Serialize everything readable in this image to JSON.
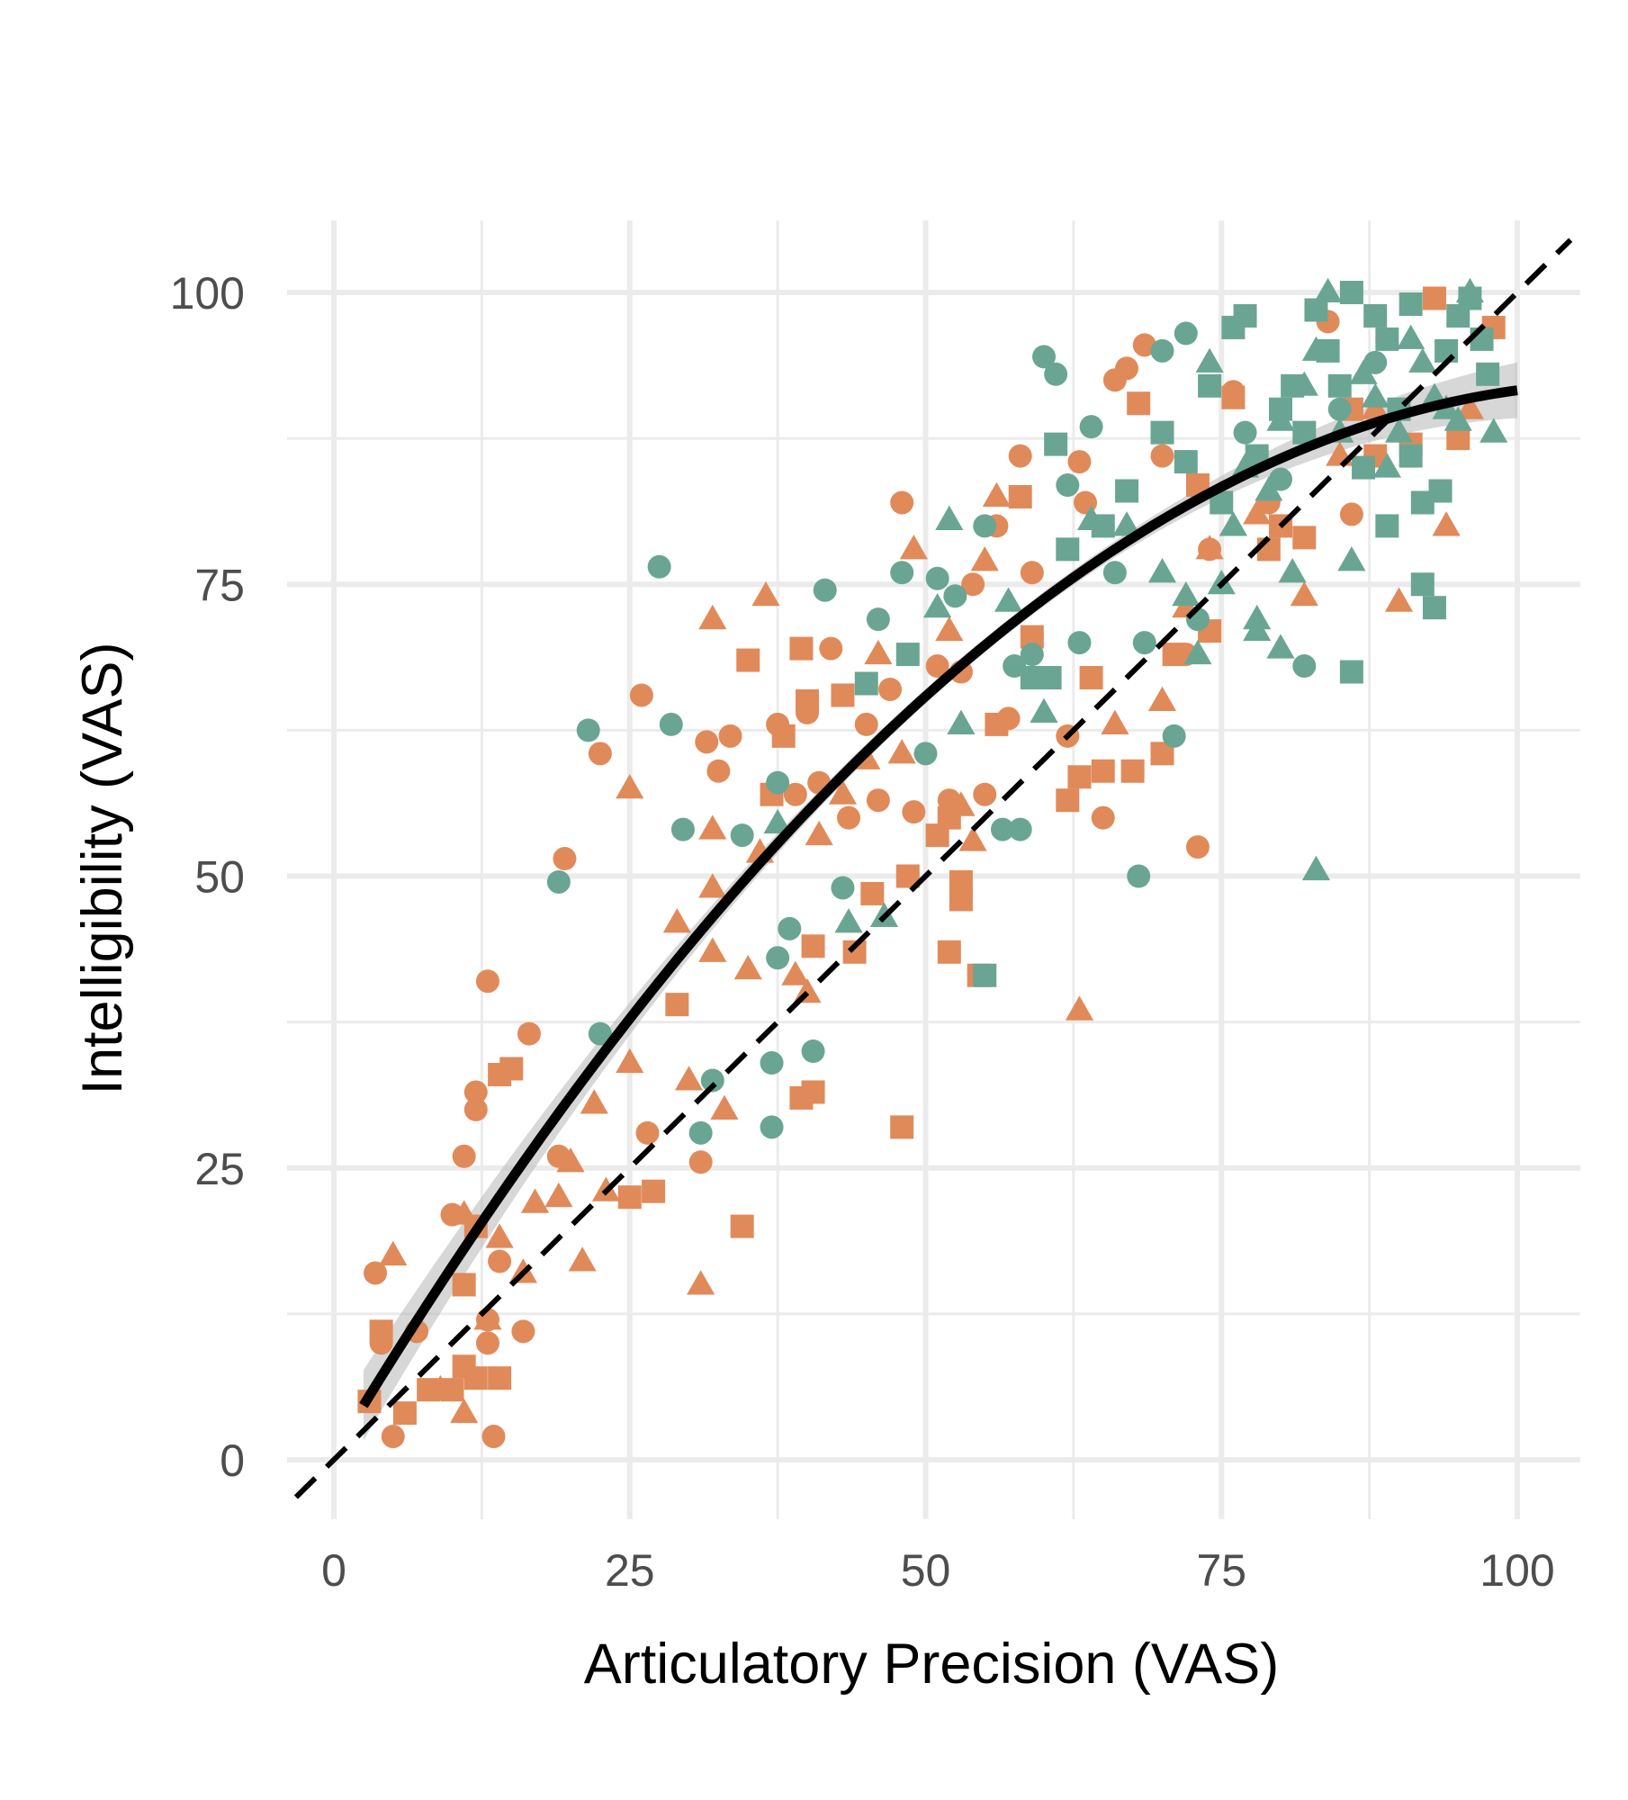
{
  "chart_data": {
    "type": "scatter",
    "title": "",
    "xlabel": "Articulatory Precision (VAS)",
    "ylabel": "Intelligibility (VAS)",
    "xlim": [
      -4,
      104
    ],
    "ylim": [
      -5,
      105
    ],
    "xticks": [
      0,
      25,
      50,
      75,
      100
    ],
    "yticks": [
      0,
      25,
      50,
      75,
      100
    ],
    "xtick_labels": [
      "0",
      "25",
      "50",
      "75",
      "100"
    ],
    "ytick_labels": [
      "0",
      "25",
      "50",
      "75",
      "100"
    ],
    "minor_grid": true,
    "grid": true,
    "legend": "none",
    "colors": {
      "orange": "#E08A5A",
      "teal": "#6AA593",
      "fit_line": "#000000",
      "ci_band": "#BDBDBD",
      "grid": "#EBEBEB"
    },
    "reference_line": {
      "label": "identity line y = x",
      "style": "dashed",
      "slope": 1,
      "intercept": 0
    },
    "fit_curve": {
      "label": "quadratic fit",
      "x": [
        2.5,
        10,
        20,
        30,
        40,
        50,
        60,
        70,
        80,
        90,
        100
      ],
      "y": [
        1,
        17,
        34,
        47,
        57,
        65,
        72,
        78,
        84,
        89,
        94.5
      ]
    },
    "series": [
      {
        "name": "orange-circle",
        "color": "orange",
        "shape": "circle",
        "points": [
          [
            3.5,
            16
          ],
          [
            4,
            10
          ],
          [
            3,
            5
          ],
          [
            5,
            2
          ],
          [
            7,
            11
          ],
          [
            10,
            21
          ],
          [
            11,
            26
          ],
          [
            12,
            30
          ],
          [
            12,
            31.5
          ],
          [
            13,
            41
          ],
          [
            13,
            10
          ],
          [
            13,
            12
          ],
          [
            14,
            17
          ],
          [
            13.5,
            2
          ],
          [
            16,
            11
          ],
          [
            16.5,
            36.5
          ],
          [
            19,
            26
          ],
          [
            19.5,
            51.5
          ],
          [
            22.5,
            60.5
          ],
          [
            26,
            65.5
          ],
          [
            26.5,
            28
          ],
          [
            31,
            25.5
          ],
          [
            31.5,
            61.5
          ],
          [
            32.5,
            59
          ],
          [
            33.5,
            62
          ],
          [
            37.5,
            63
          ],
          [
            39,
            57
          ],
          [
            40,
            64
          ],
          [
            41,
            58
          ],
          [
            42,
            69.5
          ],
          [
            43.5,
            55
          ],
          [
            45,
            63
          ],
          [
            46,
            56.5
          ],
          [
            47,
            66
          ],
          [
            48,
            82
          ],
          [
            49,
            55.5
          ],
          [
            51,
            68
          ],
          [
            52,
            56.5
          ],
          [
            53,
            67.5
          ],
          [
            54,
            75
          ],
          [
            55,
            57
          ],
          [
            56,
            80
          ],
          [
            57,
            63.5
          ],
          [
            58,
            86
          ],
          [
            59,
            76
          ],
          [
            62,
            62
          ],
          [
            63,
            85.5
          ],
          [
            63.5,
            82
          ],
          [
            65,
            55
          ],
          [
            66,
            92.5
          ],
          [
            67,
            93.5
          ],
          [
            68.5,
            95.5
          ],
          [
            70,
            86
          ],
          [
            72,
            69
          ],
          [
            73,
            52.5
          ],
          [
            74,
            78
          ],
          [
            76,
            91.5
          ],
          [
            79,
            82
          ],
          [
            84,
            97.5
          ],
          [
            86,
            81
          ]
        ]
      },
      {
        "name": "orange-square",
        "color": "orange",
        "shape": "square",
        "points": [
          [
            3,
            5
          ],
          [
            4,
            11
          ],
          [
            6,
            4
          ],
          [
            8,
            6
          ],
          [
            10,
            6
          ],
          [
            11,
            8
          ],
          [
            11,
            15
          ],
          [
            12,
            20
          ],
          [
            12,
            7
          ],
          [
            14,
            33
          ],
          [
            15,
            33.5
          ],
          [
            14,
            7
          ],
          [
            25,
            22.5
          ],
          [
            27,
            23
          ],
          [
            29,
            39
          ],
          [
            34.5,
            20
          ],
          [
            35,
            68.5
          ],
          [
            37,
            57
          ],
          [
            38,
            62
          ],
          [
            39.5,
            69.5
          ],
          [
            40,
            65
          ],
          [
            39.5,
            31
          ],
          [
            40.5,
            31.5
          ],
          [
            40.5,
            44
          ],
          [
            43,
            65.5
          ],
          [
            44,
            43.5
          ],
          [
            45.5,
            48.5
          ],
          [
            48,
            28.5
          ],
          [
            48.5,
            50
          ],
          [
            51,
            53.5
          ],
          [
            52,
            55
          ],
          [
            52,
            43.5
          ],
          [
            53,
            49.5
          ],
          [
            53,
            48
          ],
          [
            54.5,
            41.5
          ],
          [
            56,
            63
          ],
          [
            58,
            82.5
          ],
          [
            59,
            70.5
          ],
          [
            62,
            56.5
          ],
          [
            63,
            58.5
          ],
          [
            64,
            67
          ],
          [
            65,
            59
          ],
          [
            67.5,
            59
          ],
          [
            68,
            90.5
          ],
          [
            70,
            60.5
          ],
          [
            71,
            69
          ],
          [
            73,
            83.5
          ],
          [
            74,
            71
          ],
          [
            76,
            91
          ],
          [
            79,
            78
          ],
          [
            80,
            80
          ],
          [
            82,
            79
          ],
          [
            86,
            90
          ],
          [
            88,
            86
          ],
          [
            91,
            87
          ],
          [
            93,
            99.5
          ],
          [
            95,
            87.5
          ],
          [
            98,
            97
          ]
        ]
      },
      {
        "name": "orange-triangle",
        "color": "orange",
        "shape": "triangle",
        "points": [
          [
            5,
            17.5
          ],
          [
            9,
            6
          ],
          [
            11,
            4
          ],
          [
            11,
            21
          ],
          [
            13,
            12
          ],
          [
            14,
            19
          ],
          [
            16,
            16
          ],
          [
            17,
            22
          ],
          [
            19,
            22.5
          ],
          [
            20,
            25.5
          ],
          [
            21,
            17
          ],
          [
            22,
            30.5
          ],
          [
            23,
            23
          ],
          [
            25,
            34
          ],
          [
            25,
            57.5
          ],
          [
            29,
            46
          ],
          [
            30,
            32.5
          ],
          [
            31,
            15
          ],
          [
            32,
            49
          ],
          [
            32,
            43.5
          ],
          [
            32,
            54
          ],
          [
            32,
            72
          ],
          [
            33,
            30
          ],
          [
            35,
            42
          ],
          [
            36,
            52
          ],
          [
            36.5,
            74
          ],
          [
            39,
            41.5
          ],
          [
            40,
            40
          ],
          [
            41,
            53.5
          ],
          [
            43,
            57
          ],
          [
            45,
            60
          ],
          [
            46,
            69
          ],
          [
            48,
            60.5
          ],
          [
            49,
            78
          ],
          [
            52,
            71
          ],
          [
            53,
            56
          ],
          [
            54,
            53
          ],
          [
            55,
            77
          ],
          [
            56,
            82.5
          ],
          [
            63,
            38.5
          ],
          [
            66,
            63
          ],
          [
            70,
            65
          ],
          [
            72,
            73
          ],
          [
            74,
            78
          ],
          [
            78,
            81
          ],
          [
            82,
            74
          ],
          [
            85,
            86
          ],
          [
            88,
            90
          ],
          [
            90,
            73.5
          ],
          [
            94,
            80
          ],
          [
            96,
            90
          ]
        ]
      },
      {
        "name": "teal-circle",
        "color": "teal",
        "shape": "circle",
        "points": [
          [
            19,
            49.5
          ],
          [
            21.5,
            62.5
          ],
          [
            22.5,
            36.5
          ],
          [
            27.5,
            76.5
          ],
          [
            28.5,
            63
          ],
          [
            29.5,
            54
          ],
          [
            31,
            28
          ],
          [
            32,
            32.5
          ],
          [
            34.5,
            53.5
          ],
          [
            37,
            34
          ],
          [
            37,
            28.5
          ],
          [
            37.5,
            58
          ],
          [
            37.5,
            43
          ],
          [
            38.5,
            45.5
          ],
          [
            40.5,
            35
          ],
          [
            41.5,
            74.5
          ],
          [
            43,
            49
          ],
          [
            46,
            72
          ],
          [
            48,
            76
          ],
          [
            50,
            60.5
          ],
          [
            51,
            75.5
          ],
          [
            52.5,
            74
          ],
          [
            55,
            80
          ],
          [
            56.5,
            54
          ],
          [
            57.5,
            68
          ],
          [
            58,
            54
          ],
          [
            59,
            69
          ],
          [
            60,
            94.5
          ],
          [
            61,
            93
          ],
          [
            62,
            83.5
          ],
          [
            63,
            70
          ],
          [
            64,
            88.5
          ],
          [
            66,
            76
          ],
          [
            68,
            50
          ],
          [
            68.5,
            70
          ],
          [
            70,
            95
          ],
          [
            71,
            62
          ],
          [
            72,
            96.5
          ],
          [
            73,
            72
          ],
          [
            77,
            88
          ],
          [
            80,
            84
          ],
          [
            82,
            68
          ],
          [
            85,
            90
          ],
          [
            88,
            94
          ]
        ]
      },
      {
        "name": "teal-square",
        "color": "teal",
        "shape": "square",
        "points": [
          [
            45,
            66.5
          ],
          [
            48.5,
            69
          ],
          [
            55,
            41.5
          ],
          [
            59,
            67
          ],
          [
            60.5,
            67
          ],
          [
            61,
            87
          ],
          [
            62,
            78
          ],
          [
            65,
            80
          ],
          [
            67,
            83
          ],
          [
            70,
            88
          ],
          [
            72,
            85.5
          ],
          [
            74,
            92
          ],
          [
            75,
            82
          ],
          [
            76,
            97
          ],
          [
            77,
            98
          ],
          [
            78,
            86
          ],
          [
            80,
            90
          ],
          [
            81,
            92
          ],
          [
            82,
            88
          ],
          [
            83,
            98.5
          ],
          [
            84,
            95
          ],
          [
            85,
            92
          ],
          [
            86,
            100
          ],
          [
            87,
            85
          ],
          [
            88,
            98
          ],
          [
            89,
            96
          ],
          [
            90,
            90
          ],
          [
            91,
            99
          ],
          [
            92,
            75
          ],
          [
            92,
            82
          ],
          [
            93,
            73
          ],
          [
            93.5,
            83
          ],
          [
            94,
            95
          ],
          [
            95,
            98
          ],
          [
            96,
            99.5
          ],
          [
            97,
            96
          ],
          [
            97.5,
            93
          ],
          [
            86,
            67.5
          ],
          [
            89,
            80
          ],
          [
            91,
            86
          ]
        ]
      },
      {
        "name": "teal-triangle",
        "color": "teal",
        "shape": "triangle",
        "points": [
          [
            37.5,
            54.5
          ],
          [
            43.5,
            46
          ],
          [
            46.5,
            46.5
          ],
          [
            51,
            73
          ],
          [
            52,
            80.5
          ],
          [
            53,
            63
          ],
          [
            57,
            73.5
          ],
          [
            60,
            64
          ],
          [
            64,
            80.5
          ],
          [
            67,
            80
          ],
          [
            70,
            76
          ],
          [
            72,
            74
          ],
          [
            73,
            69
          ],
          [
            74,
            94
          ],
          [
            75,
            75
          ],
          [
            76,
            80
          ],
          [
            77,
            85
          ],
          [
            78,
            72
          ],
          [
            79,
            83
          ],
          [
            80,
            89
          ],
          [
            81,
            76
          ],
          [
            82,
            92
          ],
          [
            83,
            50.5
          ],
          [
            83,
            95
          ],
          [
            84,
            100
          ],
          [
            85,
            88
          ],
          [
            86,
            77
          ],
          [
            87,
            93
          ],
          [
            88,
            91
          ],
          [
            89,
            85
          ],
          [
            90,
            88
          ],
          [
            91,
            96
          ],
          [
            92,
            94
          ],
          [
            93,
            91
          ],
          [
            94,
            90
          ],
          [
            95,
            89
          ],
          [
            96,
            100
          ],
          [
            98,
            88
          ],
          [
            78,
            71
          ],
          [
            80,
            69.5
          ]
        ]
      }
    ]
  }
}
